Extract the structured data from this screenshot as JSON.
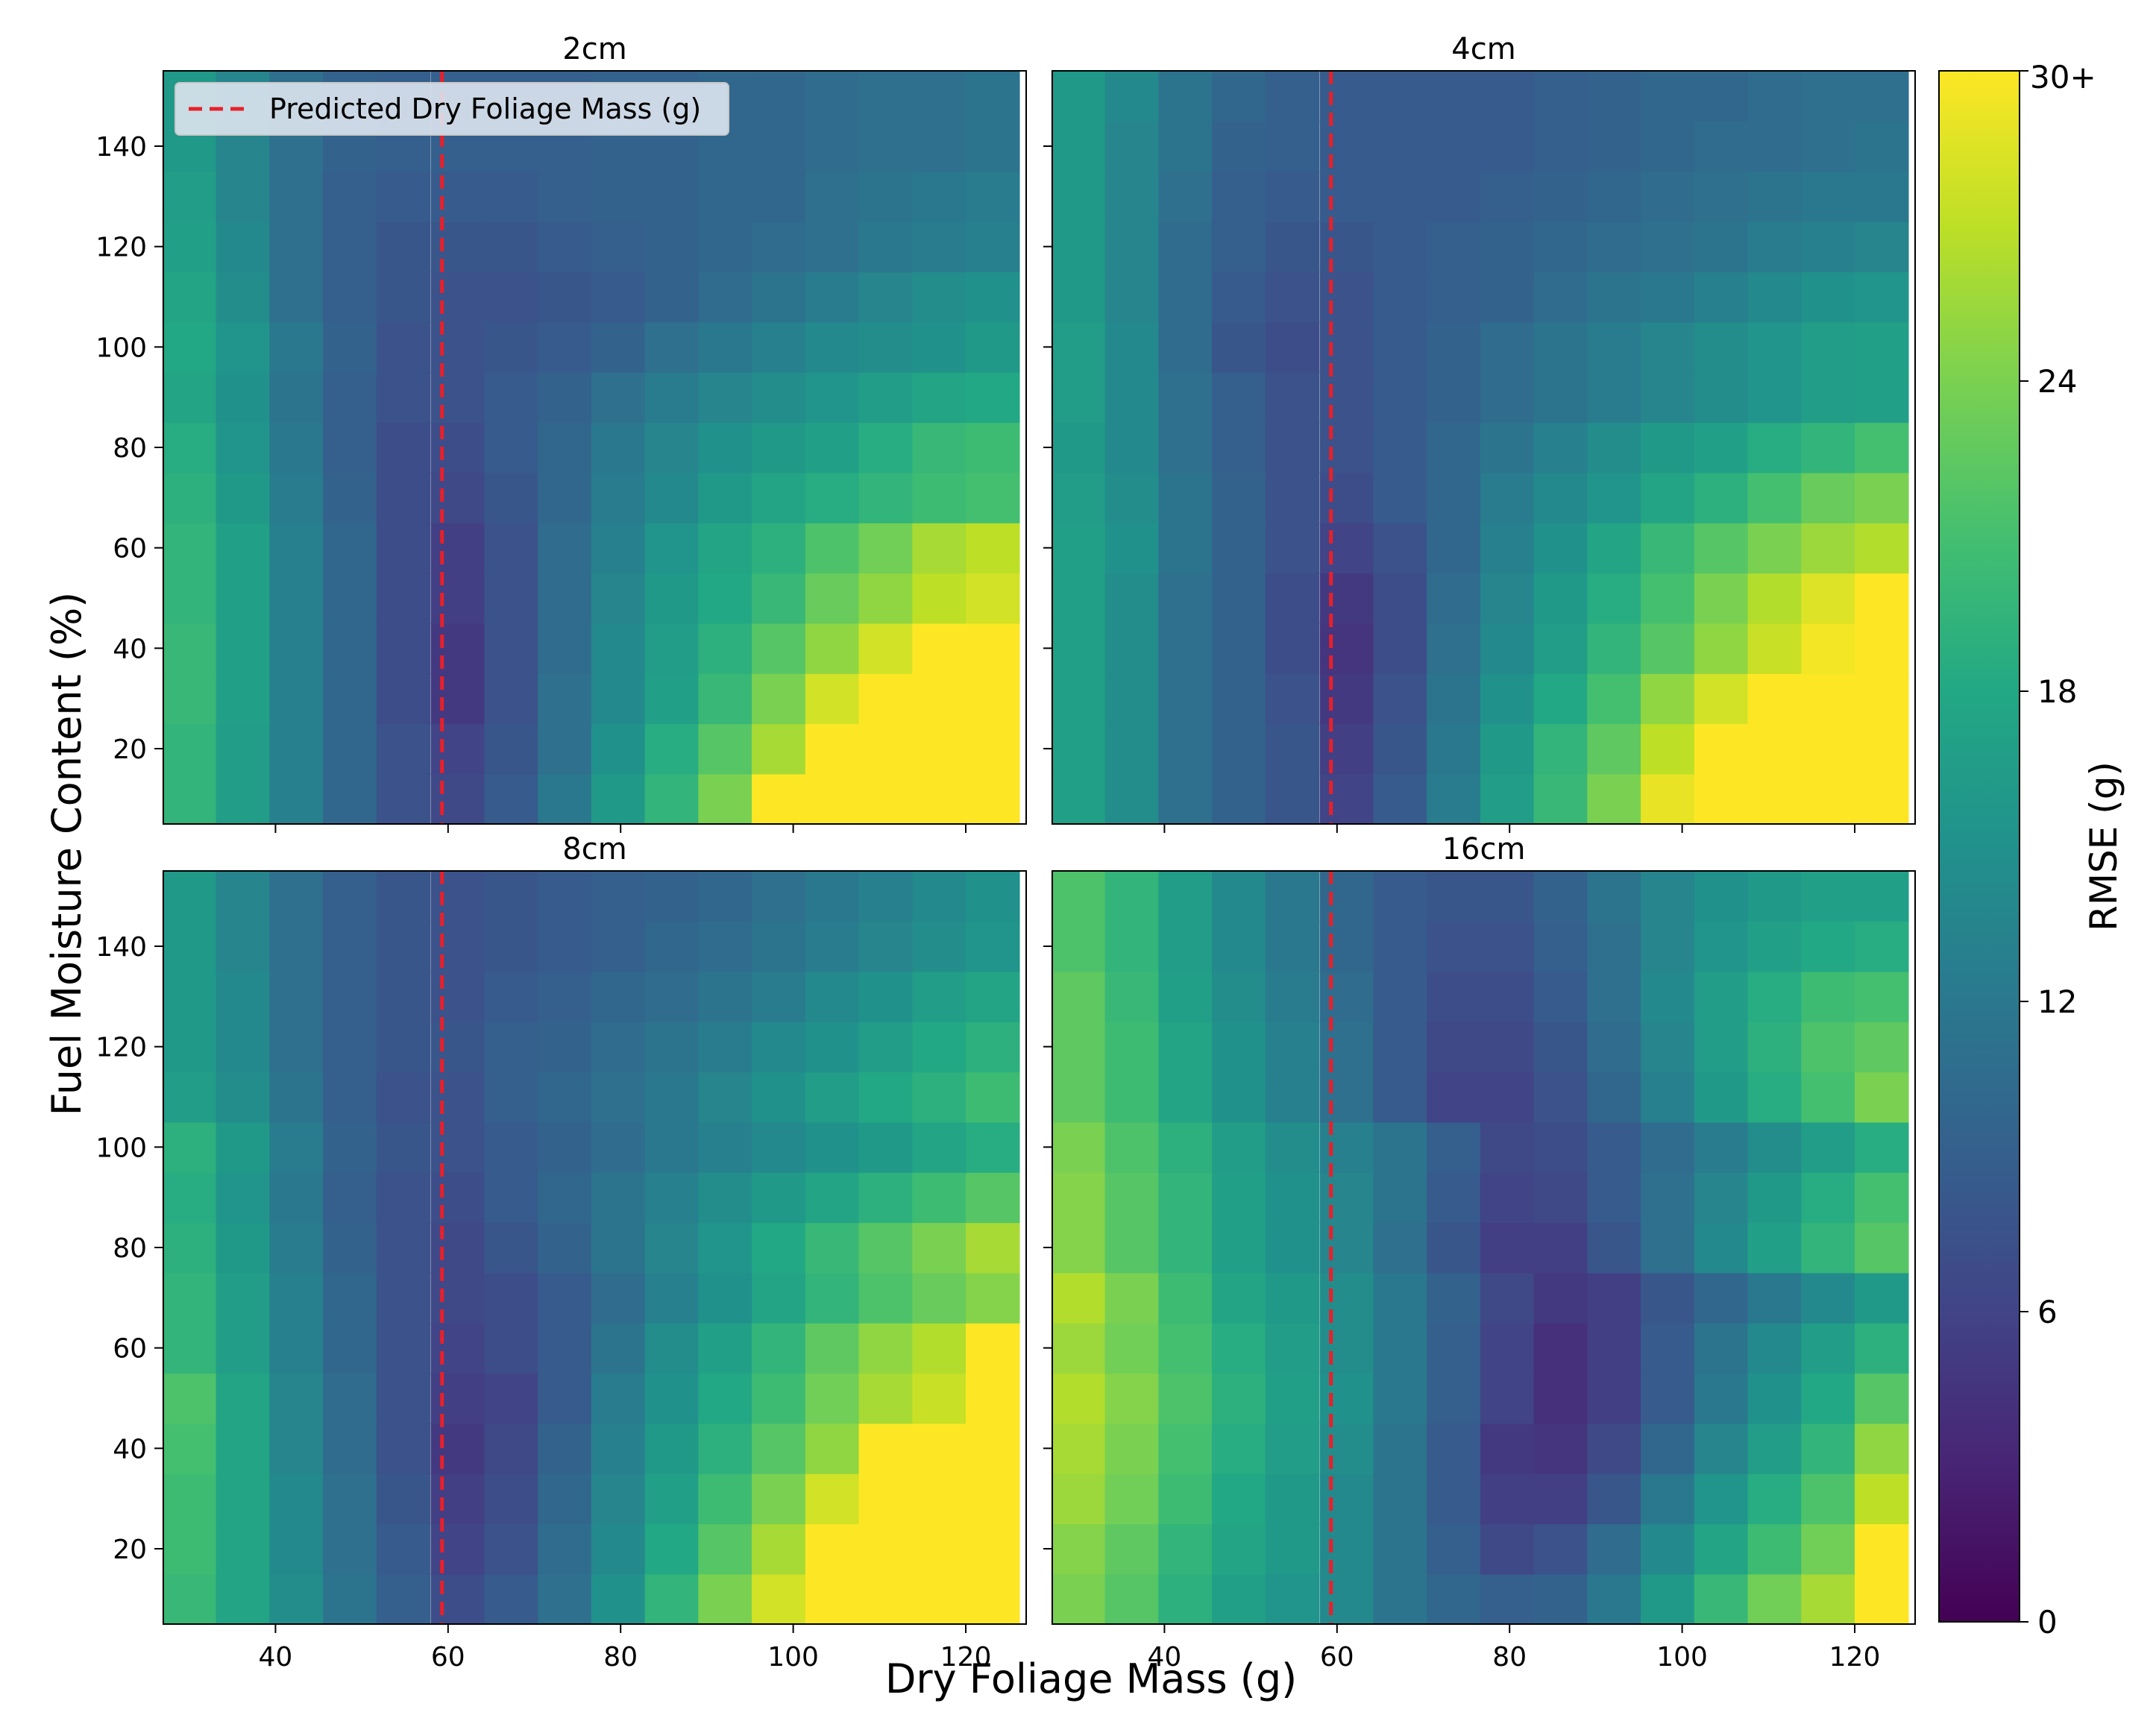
{
  "figure": {
    "xlabel": "Dry Foliage Mass (g)",
    "ylabel": "Fuel Moisture Content (%)"
  },
  "chart_data": {
    "type": "heatmap",
    "x": [
      30,
      36.2,
      42.4,
      48.6,
      54.8,
      61.1,
      67.3,
      73.5,
      79.7,
      85.9,
      92.1,
      98.3,
      104.5,
      110.7,
      116.9,
      123.1
    ],
    "y": [
      10,
      20,
      30,
      40,
      50,
      60,
      70,
      80,
      90,
      100,
      110,
      120,
      130,
      140,
      150
    ],
    "xlim": [
      27,
      127
    ],
    "ylim": [
      5,
      155
    ],
    "xticks": [
      40,
      60,
      80,
      100,
      120
    ],
    "yticks": [
      20,
      40,
      60,
      80,
      100,
      120,
      140
    ],
    "colormap": "viridis",
    "colorbar": {
      "label": "RMSE (g)",
      "min": 0,
      "max": 30,
      "ticks": [
        0,
        6,
        12,
        18,
        24
      ],
      "top_label": "30+"
    },
    "reference_line": {
      "x": 59.3,
      "label": "Predicted Dry Foliage Mass (g)",
      "color": "#e8202a",
      "style": "dashed"
    },
    "legend_location": "upper-left of first panel",
    "panels": [
      {
        "title": "2cm",
        "z": [
          [
            19.5,
            16.5,
            13,
            10,
            7.5,
            6.5,
            8.5,
            12,
            16,
            19.5,
            24,
            30,
            30,
            30,
            30,
            30
          ],
          [
            19.5,
            16.5,
            13,
            10,
            7.5,
            6,
            8,
            11,
            15,
            18.5,
            22,
            26,
            30,
            30,
            30,
            30
          ],
          [
            20,
            17,
            13,
            10,
            7,
            5,
            7.5,
            11,
            14,
            17,
            20,
            24,
            28,
            30,
            30,
            30
          ],
          [
            20,
            17,
            13,
            10,
            7,
            5,
            7.5,
            10.5,
            14,
            16.5,
            19,
            22,
            25,
            28,
            30,
            30
          ],
          [
            19.5,
            17,
            13,
            10,
            7,
            5.5,
            7.5,
            10.5,
            13.5,
            16,
            18,
            20,
            23,
            25,
            27,
            28
          ],
          [
            19.5,
            17,
            13,
            10,
            7,
            5.5,
            7.5,
            10.5,
            13,
            15.5,
            17.5,
            19,
            21.5,
            23.5,
            26,
            27
          ],
          [
            19,
            16,
            12.5,
            9.5,
            7,
            6.5,
            8,
            10,
            12.5,
            14,
            16,
            17.5,
            18.5,
            19.5,
            20.5,
            21
          ],
          [
            18.5,
            15.5,
            12,
            9,
            7,
            7,
            8.5,
            10,
            12,
            13.5,
            15,
            16,
            17,
            18.5,
            20,
            20.5
          ],
          [
            17.5,
            15,
            11.5,
            9,
            7.5,
            7.5,
            8.5,
            9.5,
            11,
            12.5,
            13.5,
            14.5,
            15.5,
            16.5,
            17.5,
            18
          ],
          [
            18,
            15.5,
            12,
            9.5,
            7.5,
            7.5,
            8,
            8.5,
            9.5,
            11,
            12,
            13,
            14,
            14.5,
            15,
            16
          ],
          [
            17.5,
            14.5,
            11,
            9,
            8,
            7.5,
            7.5,
            8,
            8.5,
            9.5,
            10.5,
            11.5,
            12.5,
            13.5,
            14.5,
            15
          ],
          [
            17,
            14,
            11,
            9,
            8,
            8,
            8,
            8.5,
            9,
            9.5,
            10,
            10.5,
            11,
            12,
            12.5,
            13
          ],
          [
            16.5,
            13.5,
            11,
            9,
            8.5,
            8.5,
            8.5,
            9,
            9.5,
            9.5,
            10,
            10,
            11,
            11.5,
            12,
            12.5
          ],
          [
            16,
            13.5,
            11,
            9.5,
            9,
            9,
            9,
            9,
            9.5,
            9.5,
            10,
            10,
            10.5,
            11,
            11,
            11.5
          ],
          [
            16,
            13.5,
            11,
            9.5,
            9,
            9,
            9,
            9,
            9.5,
            9.5,
            10,
            10,
            10.5,
            11,
            11,
            11.5
          ]
        ]
      },
      {
        "title": "4cm",
        "z": [
          [
            17,
            14.5,
            11,
            9.5,
            8,
            6,
            8.5,
            12.5,
            16.5,
            20,
            24,
            29,
            30,
            30,
            30,
            30
          ],
          [
            17,
            14.5,
            11,
            9.5,
            8,
            5.5,
            8,
            12,
            16,
            19.5,
            22.5,
            27,
            30,
            30,
            30,
            30
          ],
          [
            17,
            14.5,
            11,
            9.5,
            7.5,
            5,
            7.5,
            11.5,
            15,
            18,
            21,
            25,
            28,
            30,
            30,
            30
          ],
          [
            17,
            14.5,
            11,
            9.5,
            7,
            4.5,
            7,
            11,
            14,
            16.5,
            19.5,
            22,
            25,
            27.5,
            29.5,
            30
          ],
          [
            17,
            14.5,
            11,
            9.5,
            7,
            5,
            7,
            10.5,
            13.5,
            16,
            18.5,
            21,
            24,
            26.5,
            28.5,
            30
          ],
          [
            17,
            15,
            11.5,
            9.5,
            7.5,
            6,
            7.5,
            10,
            13,
            15,
            17.5,
            20,
            22,
            24,
            25.5,
            26.5
          ],
          [
            16.5,
            14.5,
            11.5,
            9.5,
            7.5,
            7,
            8.5,
            10,
            12.5,
            14,
            15.5,
            17.5,
            19,
            21,
            23,
            24
          ],
          [
            16,
            14,
            11,
            9,
            7.5,
            7.5,
            8.5,
            10,
            11.5,
            13,
            14.5,
            16,
            17,
            18.5,
            19.5,
            21
          ],
          [
            16.5,
            14,
            11,
            9,
            7.5,
            7.5,
            8.5,
            9.5,
            10.5,
            11.5,
            12.5,
            13.5,
            14.5,
            15.5,
            16.5,
            17
          ],
          [
            16.5,
            14,
            10.5,
            8,
            7,
            7.5,
            8.5,
            9.5,
            10.5,
            11.5,
            12.5,
            13.5,
            14.5,
            15.5,
            16.5,
            17
          ],
          [
            16,
            13.5,
            10.5,
            8.5,
            7.5,
            7.5,
            8.5,
            9,
            9.5,
            10.5,
            11.5,
            12,
            13,
            14,
            15,
            15.5
          ],
          [
            16,
            13.5,
            10.5,
            9,
            8,
            8,
            8.5,
            9,
            9.5,
            10,
            10.5,
            11,
            11.5,
            12.5,
            13,
            13.5
          ],
          [
            16,
            13.5,
            11,
            9,
            8.5,
            8.5,
            8.5,
            8.5,
            9,
            9.5,
            10,
            10.5,
            11,
            11.5,
            12,
            12
          ],
          [
            16,
            13.5,
            11.5,
            9.5,
            9,
            8.5,
            8.5,
            8.5,
            8.5,
            9,
            9.5,
            10,
            10.5,
            10.5,
            11,
            11.5
          ],
          [
            16,
            14,
            11.5,
            10,
            9,
            8.5,
            8.5,
            8.5,
            8.5,
            9,
            9.5,
            10,
            10,
            10.5,
            11,
            11
          ]
        ]
      },
      {
        "title": "8cm",
        "z": [
          [
            20,
            17.5,
            14.5,
            11.5,
            9,
            7,
            8.5,
            11,
            15,
            19.5,
            24,
            28,
            30,
            30,
            30,
            30
          ],
          [
            20.5,
            17.5,
            14,
            11,
            8.5,
            6,
            7.5,
            10.5,
            14,
            18,
            22,
            26,
            30,
            30,
            30,
            30
          ],
          [
            20.5,
            17.5,
            14,
            11,
            8,
            5.5,
            7,
            10,
            13.5,
            17,
            20.5,
            24,
            28,
            30,
            30,
            30
          ],
          [
            21,
            17.5,
            13.5,
            10.5,
            7.5,
            5,
            6.5,
            9.5,
            13,
            16,
            19,
            22,
            25,
            30,
            30,
            30
          ],
          [
            21.5,
            17.5,
            13.5,
            10.5,
            7.5,
            5.5,
            6,
            8.5,
            12.5,
            15,
            18,
            20.5,
            23.5,
            26,
            27.5,
            30
          ],
          [
            19.5,
            16.5,
            13,
            10,
            7.5,
            6,
            7,
            8.5,
            11.5,
            14.5,
            17,
            19.5,
            22.5,
            25,
            26.5,
            30
          ],
          [
            19.5,
            16.5,
            13,
            10,
            7.5,
            6.5,
            7,
            8.5,
            10.5,
            13,
            15,
            17.5,
            19.5,
            21.5,
            23,
            24.5
          ],
          [
            19,
            16,
            12.5,
            9.5,
            7.5,
            6.5,
            8,
            9.5,
            11.5,
            13.5,
            15.5,
            18,
            20,
            22,
            24,
            26
          ],
          [
            18.5,
            15.5,
            12,
            9,
            7.5,
            7,
            8.5,
            10,
            11.5,
            13,
            14.5,
            16,
            17.5,
            19,
            20.5,
            22
          ],
          [
            19,
            16,
            12.5,
            9.5,
            8,
            7.5,
            8.5,
            9.5,
            10.5,
            12,
            13,
            14,
            15,
            16,
            17.5,
            18.5
          ],
          [
            16.5,
            14.5,
            11.5,
            9,
            7.5,
            7.5,
            9,
            10,
            11,
            12,
            13.5,
            15,
            16.5,
            18,
            19,
            20.5
          ],
          [
            16,
            14,
            11,
            9,
            8,
            8,
            9,
            9.5,
            10.5,
            11.5,
            12.5,
            14,
            15,
            16.5,
            18,
            19
          ],
          [
            16,
            14,
            11,
            9,
            8,
            7.5,
            8.5,
            9,
            10,
            10.5,
            11.5,
            12.5,
            14,
            15,
            16.5,
            17.5
          ],
          [
            16,
            13.5,
            11,
            9,
            8,
            7.5,
            8,
            8.5,
            9,
            10,
            10.5,
            11.5,
            12.5,
            13.5,
            14.5,
            15.5
          ],
          [
            16,
            13.5,
            11,
            9,
            8,
            7.5,
            8,
            8.5,
            9,
            9.5,
            10,
            11,
            12,
            13,
            14,
            15
          ]
        ]
      },
      {
        "title": "16cm",
        "z": [
          [
            24,
            22,
            19,
            17,
            15.5,
            14,
            11.5,
            10,
            9,
            9.5,
            12,
            16,
            20,
            23.5,
            26,
            30
          ],
          [
            24.5,
            22.5,
            19.5,
            17.5,
            16,
            14,
            11.5,
            9,
            6.5,
            7.5,
            10.5,
            14,
            17.5,
            20.5,
            23.5,
            30
          ],
          [
            25.5,
            23.5,
            20.5,
            18,
            16,
            14,
            11.5,
            8.5,
            5.5,
            5.5,
            8,
            12,
            15.5,
            18.5,
            21.5,
            27
          ],
          [
            26,
            24,
            21,
            18.5,
            16.5,
            14.5,
            11.5,
            8.5,
            5,
            4.5,
            6.5,
            10,
            13.5,
            16.5,
            19.5,
            25
          ],
          [
            26.5,
            24.5,
            21.5,
            19,
            17,
            15,
            12,
            9,
            6,
            4,
            5.5,
            8.5,
            12,
            15,
            18,
            22
          ],
          [
            25.5,
            23.5,
            21,
            18.5,
            16.5,
            14.5,
            12,
            9,
            6,
            4,
            5.5,
            8.5,
            11.5,
            14,
            16.5,
            19
          ],
          [
            26.5,
            24,
            20.5,
            17.5,
            16,
            14.5,
            12,
            9.5,
            6.5,
            5,
            5.5,
            8,
            10,
            12,
            14,
            16
          ],
          [
            24.5,
            22,
            19.5,
            17,
            15,
            13.5,
            11,
            8,
            5.5,
            5.5,
            8,
            11,
            14,
            17,
            19.5,
            22
          ],
          [
            24.5,
            22,
            19.5,
            17,
            15,
            13.5,
            11.5,
            8.5,
            6,
            6.5,
            8.5,
            11,
            13.5,
            16,
            18.5,
            21
          ],
          [
            24,
            21.5,
            19,
            16.5,
            14.5,
            13,
            11.5,
            9,
            6.5,
            7,
            8.5,
            10.5,
            12.5,
            14.5,
            16.5,
            18.5
          ],
          [
            22.5,
            20.5,
            17.5,
            15,
            13,
            11,
            8.5,
            6,
            6,
            7.5,
            10,
            13,
            16,
            18.5,
            21,
            24
          ],
          [
            22.5,
            20.5,
            17.5,
            15,
            13,
            11,
            8.5,
            6.5,
            6.5,
            8,
            10.5,
            13.5,
            16.5,
            19,
            21.5,
            22.5
          ],
          [
            22.5,
            20,
            17,
            14.5,
            12.5,
            10.5,
            8.5,
            7,
            7,
            8.5,
            11,
            14,
            16.5,
            18.5,
            20.5,
            21
          ],
          [
            21.5,
            19.5,
            16.5,
            14,
            12,
            10,
            8.5,
            7.5,
            7.5,
            9,
            11,
            13.5,
            15.5,
            17,
            18,
            18.5
          ],
          [
            21.5,
            19.5,
            16.5,
            14,
            12,
            10,
            8.5,
            8,
            8,
            9.5,
            11.5,
            13.5,
            15,
            16,
            17,
            17
          ]
        ]
      }
    ]
  }
}
